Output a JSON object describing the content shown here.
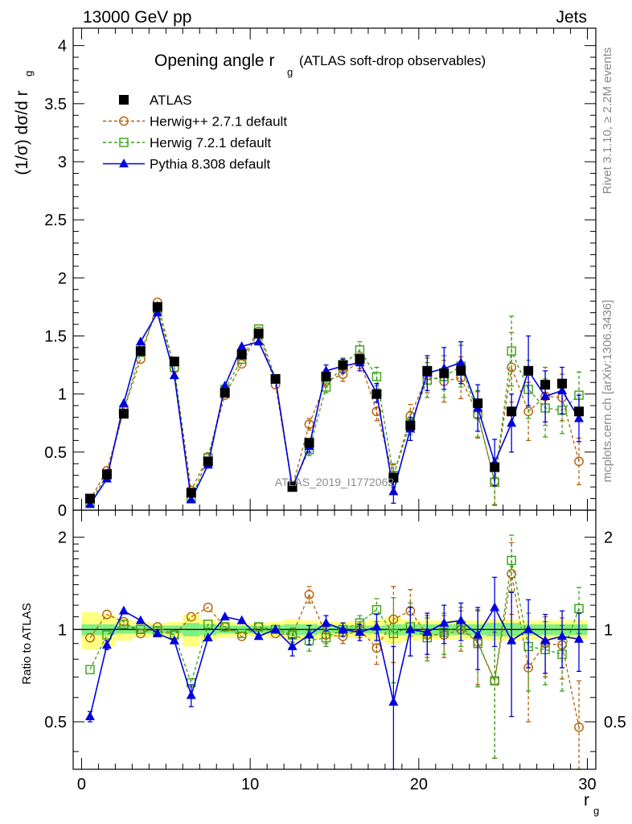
{
  "header": {
    "left": "13000 GeV pp",
    "right": "Jets"
  },
  "side_labels": {
    "rivet": "Rivet 3.1.10, ≥ 2.2M events",
    "mcplots": "mcplots.cern.ch [arXiv:1306.3436]"
  },
  "watermark": "ATLAS_2019_I1772062",
  "chart_data": [
    {
      "type": "scatter",
      "panel": "main",
      "title": "Opening angle r",
      "title_sub": "g",
      "title_note": "(ATLAS soft-drop observables)",
      "ylabel": "(1/σ) dσ/d r",
      "ylabel_sub": "g",
      "xlim": [
        -0.5,
        30.5
      ],
      "ylim": [
        0,
        4.15
      ],
      "yticks": [
        0,
        0.5,
        1,
        1.5,
        2,
        2.5,
        3,
        3.5,
        4
      ],
      "ytick_labels": [
        "0",
        "0.5",
        "1",
        "1.5",
        "2",
        "2.5",
        "3",
        "3.5",
        "4"
      ],
      "x": [
        0.5,
        1.5,
        2.5,
        3.5,
        4.5,
        5.5,
        6.5,
        7.5,
        8.5,
        9.5,
        10.5,
        11.5,
        12.5,
        13.5,
        14.5,
        15.5,
        16.5,
        17.5,
        18.5,
        19.5,
        20.5,
        21.5,
        22.5,
        23.5,
        24.5,
        25.5,
        26.5,
        27.5,
        28.5,
        29.5
      ],
      "legend": [
        "ATLAS",
        "Herwig++ 2.7.1 default",
        "Herwig 7.2.1 default",
        "Pythia 8.308 default"
      ],
      "series": [
        {
          "name": "ATLAS",
          "color": "#000000",
          "marker": "square-filled",
          "values": [
            0.1,
            0.31,
            0.83,
            1.37,
            1.75,
            1.28,
            0.15,
            0.42,
            1.01,
            1.34,
            1.52,
            1.13,
            0.2,
            0.58,
            1.15,
            1.25,
            1.3,
            1.0,
            0.28,
            0.73,
            1.2,
            1.18,
            1.2,
            0.92,
            0.37,
            0.85,
            1.2,
            1.08,
            1.09,
            0.85
          ],
          "errors": [
            0,
            0,
            0,
            0,
            0,
            0,
            0,
            0,
            0,
            0,
            0,
            0,
            0,
            0,
            0,
            0,
            0,
            0,
            0,
            0,
            0,
            0,
            0,
            0,
            0,
            0,
            0,
            0,
            0,
            0
          ]
        },
        {
          "name": "Herwig++ 2.7.1 default",
          "color": "#b45f06",
          "marker": "circle-open",
          "dashed": true,
          "values": [
            0.09,
            0.34,
            0.86,
            1.3,
            1.79,
            1.22,
            0.17,
            0.46,
            0.99,
            1.26,
            1.54,
            1.08,
            0.2,
            0.74,
            1.11,
            1.17,
            1.29,
            0.85,
            0.29,
            0.81,
            1.16,
            1.11,
            1.14,
            0.82,
            0.25,
            1.23,
            0.85,
            0.98,
            0.97,
            0.42
          ],
          "errors": [
            0,
            0,
            0,
            0,
            0,
            0,
            0,
            0,
            0,
            0,
            0,
            0,
            0,
            0.05,
            0.05,
            0.06,
            0.07,
            0.08,
            0.1,
            0.1,
            0.15,
            0.18,
            0.18,
            0.2,
            0.2,
            0.3,
            0.25,
            0.25,
            0.2,
            0.2
          ]
        },
        {
          "name": "Herwig 7.2.1 default",
          "color": "#38a016",
          "marker": "square-open",
          "dashed": true,
          "values": [
            0.07,
            0.3,
            0.86,
            1.36,
            1.73,
            1.23,
            0.1,
            0.45,
            1.04,
            1.3,
            1.56,
            1.13,
            0.21,
            0.52,
            1.06,
            1.25,
            1.38,
            1.15,
            0.3,
            0.75,
            1.12,
            1.15,
            1.24,
            0.83,
            0.24,
            1.37,
            1.04,
            0.88,
            0.86,
            0.99
          ],
          "errors": [
            0,
            0,
            0,
            0,
            0,
            0,
            0,
            0,
            0,
            0,
            0,
            0,
            0,
            0.05,
            0.05,
            0.06,
            0.07,
            0.08,
            0.1,
            0.1,
            0.15,
            0.18,
            0.18,
            0.2,
            0.2,
            0.3,
            0.25,
            0.25,
            0.2,
            0.2
          ]
        },
        {
          "name": "Pythia 8.308 default",
          "color": "#0000dd",
          "marker": "triangle-filled",
          "values": [
            0.05,
            0.27,
            0.92,
            1.45,
            1.7,
            1.16,
            0.09,
            0.39,
            1.07,
            1.41,
            1.45,
            1.13,
            0.19,
            0.55,
            1.2,
            1.24,
            1.27,
            1.01,
            0.16,
            0.7,
            1.18,
            1.22,
            1.27,
            0.88,
            0.41,
            0.75,
            1.2,
            0.98,
            1.03,
            0.79
          ],
          "errors": [
            0,
            0,
            0,
            0,
            0,
            0,
            0,
            0,
            0,
            0,
            0,
            0,
            0,
            0.05,
            0.05,
            0.06,
            0.07,
            0.08,
            0.1,
            0.1,
            0.15,
            0.18,
            0.18,
            0.2,
            0.2,
            0.25,
            0.3,
            0.22,
            0.2,
            0.2
          ]
        }
      ]
    },
    {
      "type": "scatter",
      "panel": "ratio",
      "ylabel": "Ratio to ATLAS",
      "xlabel": "r",
      "xlabel_sub": "g",
      "xlim": [
        -0.5,
        30.5
      ],
      "ylim": [
        0.35,
        2.45
      ],
      "yscale": "log",
      "yticks": [
        0.5,
        1,
        2
      ],
      "ytick_labels": [
        "0.5",
        "1",
        "2"
      ],
      "xticks": [
        0,
        10,
        20,
        30
      ],
      "xtick_labels": [
        "0",
        "10",
        "20",
        "30"
      ],
      "x": [
        0.5,
        1.5,
        2.5,
        3.5,
        4.5,
        5.5,
        6.5,
        7.5,
        8.5,
        9.5,
        10.5,
        11.5,
        12.5,
        13.5,
        14.5,
        15.5,
        16.5,
        17.5,
        18.5,
        19.5,
        20.5,
        21.5,
        22.5,
        23.5,
        24.5,
        25.5,
        26.5,
        27.5,
        28.5,
        29.5
      ],
      "band_stat": [
        0.04,
        0.04,
        0.03,
        0.03,
        0.03,
        0.03,
        0.05,
        0.04,
        0.03,
        0.03,
        0.03,
        0.03,
        0.04,
        0.04,
        0.03,
        0.03,
        0.03,
        0.03,
        0.04,
        0.04,
        0.04,
        0.04,
        0.04,
        0.04,
        0.05,
        0.05,
        0.04,
        0.04,
        0.04,
        0.04
      ],
      "band_total": [
        0.14,
        0.12,
        0.08,
        0.06,
        0.05,
        0.06,
        0.12,
        0.08,
        0.06,
        0.05,
        0.05,
        0.06,
        0.08,
        0.07,
        0.06,
        0.06,
        0.06,
        0.08,
        0.1,
        0.08,
        0.07,
        0.07,
        0.07,
        0.07,
        0.08,
        0.08,
        0.07,
        0.07,
        0.07,
        0.07
      ],
      "series": [
        {
          "name": "Herwig++ 2.7.1 default",
          "color": "#b45f06",
          "marker": "circle-open",
          "dashed": true,
          "values": [
            0.94,
            1.12,
            1.06,
            0.97,
            1.02,
            0.96,
            1.1,
            1.18,
            1.02,
            0.95,
            1.02,
            0.97,
            0.96,
            1.3,
            0.96,
            0.95,
            1.0,
            0.87,
            1.08,
            1.15,
            0.96,
            0.96,
            1.0,
            0.91,
            0.68,
            1.52,
            0.75,
            0.9,
            0.89,
            0.48
          ],
          "errors": [
            0,
            0,
            0,
            0,
            0,
            0,
            0,
            0,
            0,
            0,
            0,
            0,
            0.05,
            0.08,
            0.06,
            0.05,
            0.06,
            0.1,
            0.3,
            0.2,
            0.15,
            0.15,
            0.15,
            0.25,
            0.3,
            0.4,
            0.25,
            0.2,
            0.2,
            0.2
          ]
        },
        {
          "name": "Herwig 7.2.1 default",
          "color": "#38a016",
          "marker": "square-open",
          "dashed": true,
          "values": [
            0.74,
            0.96,
            1.04,
            1.0,
            0.99,
            0.96,
            0.67,
            1.04,
            1.02,
            0.97,
            1.02,
            1.0,
            0.96,
            0.92,
            0.94,
            1.0,
            1.05,
            1.16,
            0.97,
            1.02,
            0.94,
            0.98,
            1.03,
            0.9,
            0.68,
            1.68,
            0.88,
            0.86,
            0.83,
            1.17
          ],
          "errors": [
            0,
            0,
            0,
            0,
            0,
            0,
            0,
            0,
            0,
            0,
            0,
            0,
            0.05,
            0.07,
            0.06,
            0.05,
            0.06,
            0.1,
            0.3,
            0.2,
            0.15,
            0.15,
            0.15,
            0.25,
            0.3,
            0.35,
            0.25,
            0.2,
            0.2,
            0.2
          ]
        },
        {
          "name": "Pythia 8.308 default",
          "color": "#0000dd",
          "marker": "triangle-filled",
          "values": [
            0.52,
            0.89,
            1.15,
            1.07,
            0.97,
            0.92,
            0.61,
            0.94,
            1.1,
            1.07,
            0.95,
            1.0,
            0.88,
            0.96,
            1.05,
            1.0,
            0.98,
            1.02,
            0.58,
            1.0,
            0.98,
            1.05,
            1.07,
            0.96,
            1.18,
            0.92,
            1.0,
            0.92,
            0.95,
            0.93
          ],
          "errors": [
            0.02,
            0.03,
            0,
            0,
            0,
            0,
            0.05,
            0,
            0,
            0,
            0,
            0,
            0.06,
            0.07,
            0.06,
            0.05,
            0.06,
            0.1,
            0.3,
            0.18,
            0.15,
            0.15,
            0.15,
            0.22,
            0.3,
            0.4,
            0.25,
            0.2,
            0.2,
            0.2
          ]
        }
      ]
    }
  ]
}
